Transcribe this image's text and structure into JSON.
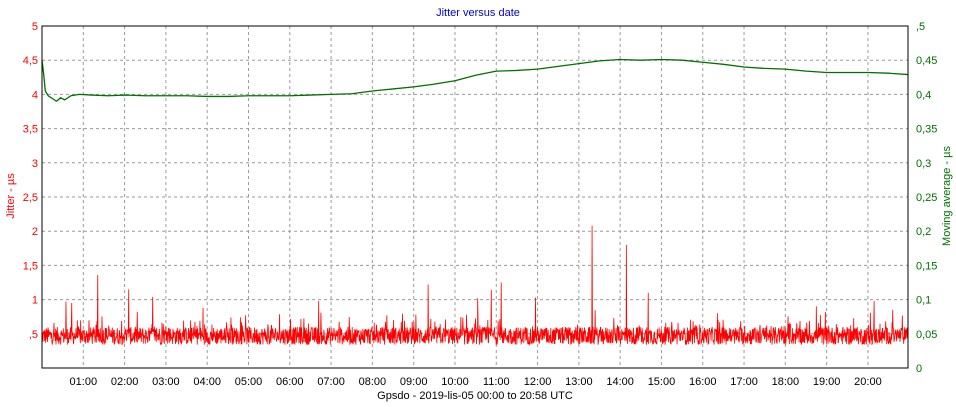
{
  "chart_data": {
    "type": "line",
    "title": "Jitter versus date",
    "xlabel": "Gpsdo  -  2019-lis-05 00:00 to 20:58 UTC",
    "ylabel_left": "Jitter - µs",
    "ylabel_right": "Moving average - µs",
    "grid": true,
    "x_unit": "hours",
    "xlim": [
      0,
      20.97
    ],
    "x_ticks": [
      {
        "x": 1,
        "label": "01:00"
      },
      {
        "x": 2,
        "label": "02:00"
      },
      {
        "x": 3,
        "label": "03:00"
      },
      {
        "x": 4,
        "label": "04:00"
      },
      {
        "x": 5,
        "label": "05:00"
      },
      {
        "x": 6,
        "label": "06:00"
      },
      {
        "x": 7,
        "label": "07:00"
      },
      {
        "x": 8,
        "label": "08:00"
      },
      {
        "x": 9,
        "label": "09:00"
      },
      {
        "x": 10,
        "label": "10:00"
      },
      {
        "x": 11,
        "label": "11:00"
      },
      {
        "x": 12,
        "label": "12:00"
      },
      {
        "x": 13,
        "label": "13:00"
      },
      {
        "x": 14,
        "label": "14:00"
      },
      {
        "x": 15,
        "label": "15:00"
      },
      {
        "x": 16,
        "label": "16:00"
      },
      {
        "x": 17,
        "label": "17:00"
      },
      {
        "x": 18,
        "label": "18:00"
      },
      {
        "x": 19,
        "label": "19:00"
      },
      {
        "x": 20,
        "label": "20:00"
      }
    ],
    "ylim_left": [
      0,
      5
    ],
    "y_ticks_left": [
      {
        "v": 0.5,
        "label": ",5"
      },
      {
        "v": 1,
        "label": "1"
      },
      {
        "v": 1.5,
        "label": "1,5"
      },
      {
        "v": 2,
        "label": "2"
      },
      {
        "v": 2.5,
        "label": "2,5"
      },
      {
        "v": 3,
        "label": "3"
      },
      {
        "v": 3.5,
        "label": "3,5"
      },
      {
        "v": 4,
        "label": "4"
      },
      {
        "v": 4.5,
        "label": "4,5"
      },
      {
        "v": 5,
        "label": "5"
      }
    ],
    "ylim_right": [
      0,
      0.5
    ],
    "y_ticks_right": [
      {
        "v": 0,
        "label": "0"
      },
      {
        "v": 0.05,
        "label": "0,05"
      },
      {
        "v": 0.1,
        "label": "0,1"
      },
      {
        "v": 0.15,
        "label": "0,15"
      },
      {
        "v": 0.2,
        "label": "0,2"
      },
      {
        "v": 0.25,
        "label": "0,25"
      },
      {
        "v": 0.3,
        "label": "0,3"
      },
      {
        "v": 0.35,
        "label": "0,35"
      },
      {
        "v": 0.4,
        "label": "0,4"
      },
      {
        "v": 0.45,
        "label": "0,45"
      },
      {
        "v": 0.5,
        "label": ",5"
      }
    ],
    "colors": {
      "title": "#0000cc",
      "jitter": "#ff0000",
      "moving_average": "#007000",
      "grid": "#9a9a9a",
      "axis_text": "#000000"
    },
    "series": [
      {
        "axis": "left",
        "color": "#ff0000",
        "noise": {
          "base": 0.47,
          "amplitude": 0.13,
          "points": 2600
        },
        "spikes": [
          {
            "x": 0.58,
            "y": 0.97
          },
          {
            "x": 0.72,
            "y": 0.95
          },
          {
            "x": 1.35,
            "y": 1.36
          },
          {
            "x": 2.1,
            "y": 1.15
          },
          {
            "x": 2.68,
            "y": 1.04
          },
          {
            "x": 3.9,
            "y": 0.88
          },
          {
            "x": 6.7,
            "y": 0.98
          },
          {
            "x": 9.35,
            "y": 1.22
          },
          {
            "x": 10.55,
            "y": 1.02
          },
          {
            "x": 10.88,
            "y": 1.14
          },
          {
            "x": 11.12,
            "y": 1.25
          },
          {
            "x": 11.95,
            "y": 1.03
          },
          {
            "x": 13.32,
            "y": 2.08
          },
          {
            "x": 14.15,
            "y": 1.8
          },
          {
            "x": 14.68,
            "y": 1.1
          },
          {
            "x": 18.75,
            "y": 0.9
          },
          {
            "x": 20.15,
            "y": 0.98
          },
          {
            "x": 20.6,
            "y": 0.85
          }
        ]
      },
      {
        "axis": "right",
        "color": "#007000",
        "x": [
          0,
          0.04,
          0.08,
          0.15,
          0.25,
          0.35,
          0.45,
          0.55,
          0.7,
          0.9,
          1.2,
          1.6,
          2.0,
          2.5,
          3.0,
          3.5,
          4.0,
          4.5,
          5.0,
          5.5,
          6.0,
          6.5,
          7.0,
          7.5,
          8.0,
          8.5,
          9.0,
          9.5,
          10.0,
          10.5,
          11.0,
          11.5,
          12.0,
          12.5,
          13.0,
          13.5,
          14.0,
          14.5,
          15.0,
          15.5,
          16.0,
          16.5,
          17.0,
          17.5,
          18.0,
          18.5,
          19.0,
          19.5,
          20.0,
          20.5,
          20.97
        ],
        "values": [
          0.45,
          0.43,
          0.405,
          0.398,
          0.394,
          0.39,
          0.395,
          0.392,
          0.398,
          0.4,
          0.399,
          0.398,
          0.399,
          0.398,
          0.398,
          0.398,
          0.397,
          0.397,
          0.398,
          0.398,
          0.398,
          0.399,
          0.4,
          0.401,
          0.405,
          0.408,
          0.411,
          0.415,
          0.42,
          0.428,
          0.434,
          0.435,
          0.437,
          0.441,
          0.445,
          0.449,
          0.451,
          0.45,
          0.451,
          0.45,
          0.447,
          0.444,
          0.44,
          0.438,
          0.437,
          0.434,
          0.432,
          0.432,
          0.432,
          0.431,
          0.429
        ]
      }
    ]
  }
}
